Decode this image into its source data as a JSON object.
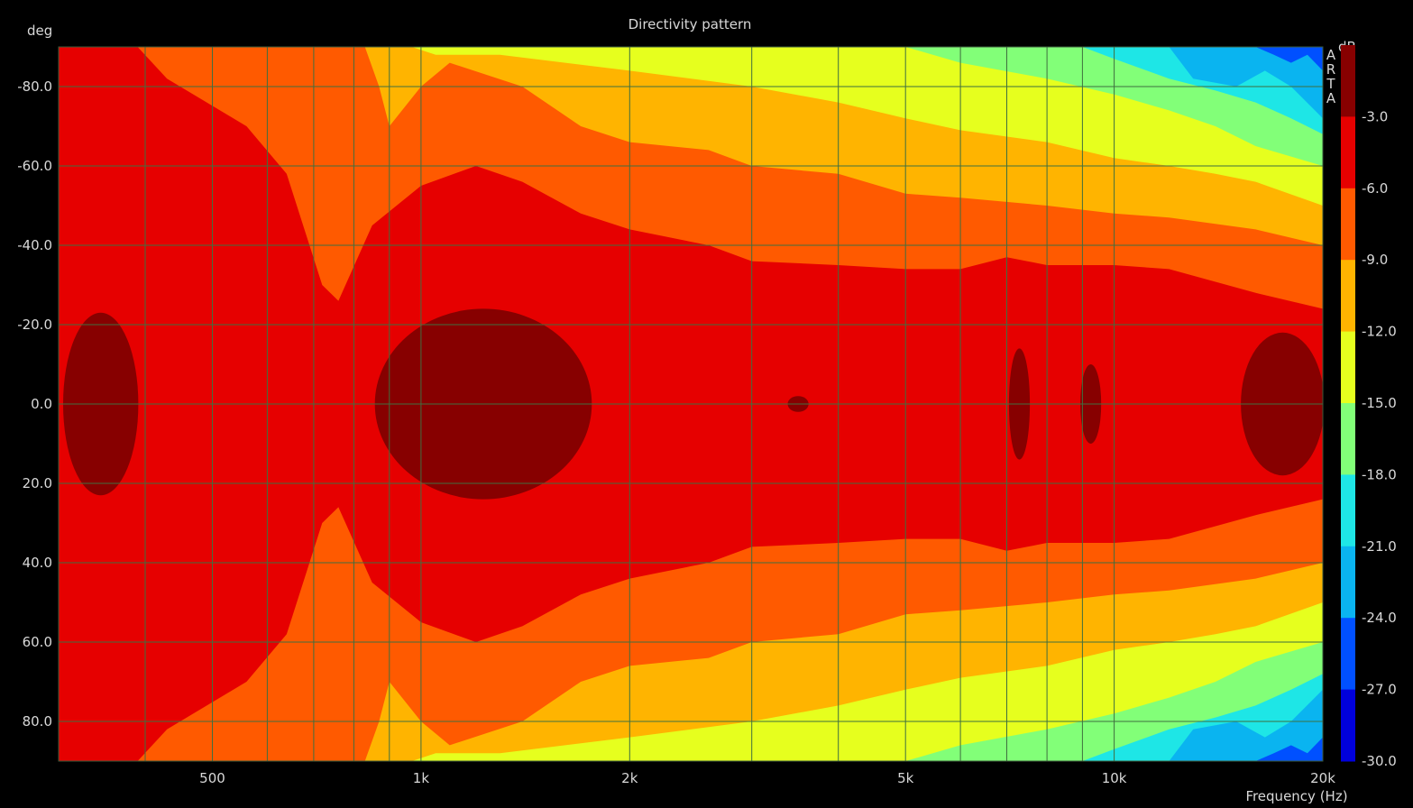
{
  "chart_data": {
    "type": "heatmap",
    "title": "Directivity pattern",
    "xlabel": "Frequency (Hz)",
    "ylabel": "deg",
    "x_scale": "log",
    "xlim": [
      300,
      20000
    ],
    "ylim": [
      -90,
      90
    ],
    "y_reversed": true,
    "x_ticks": [
      {
        "value": 500,
        "label": "500"
      },
      {
        "value": 1000,
        "label": "1k"
      },
      {
        "value": 2000,
        "label": "2k"
      },
      {
        "value": 5000,
        "label": "5k"
      },
      {
        "value": 10000,
        "label": "10k"
      },
      {
        "value": 20000,
        "label": "20k"
      }
    ],
    "x_grid": [
      300,
      400,
      500,
      600,
      700,
      800,
      900,
      1000,
      2000,
      3000,
      4000,
      5000,
      6000,
      7000,
      8000,
      9000,
      10000,
      20000
    ],
    "y_ticks": [
      -80,
      -60,
      -40,
      -20,
      0,
      20,
      40,
      60,
      80
    ],
    "y_tick_labels": [
      "-80.0",
      "-60.0",
      "-40.0",
      "-20.0",
      "0.0",
      "20.0",
      "40.0",
      "60.0",
      "80.0"
    ],
    "grid": true,
    "colorbar": {
      "unit": "dB",
      "labels": [
        "-3.0",
        "-6.0",
        "-9.0",
        "-12.0",
        "-15.0",
        "-18.0",
        "-21.0",
        "-24.0",
        "-27.0",
        "-30.0"
      ],
      "colors": [
        "#870000",
        "#e60000",
        "#ff5a00",
        "#ffb400",
        "#e6ff1e",
        "#82ff78",
        "#1ee6e6",
        "#0ab4f0",
        "#0050ff",
        "#0000dc"
      ]
    },
    "contours": [
      {
        "level": -6,
        "color": "#ff5a00",
        "points": [
          [
            390,
            -90
          ],
          [
            430,
            -82
          ],
          [
            560,
            -70
          ],
          [
            640,
            -58
          ],
          [
            720,
            -30
          ],
          [
            760,
            -26
          ],
          [
            850,
            -45
          ],
          [
            1000,
            -55
          ],
          [
            1200,
            -60
          ],
          [
            1400,
            -56
          ],
          [
            1700,
            -48
          ],
          [
            2000,
            -44
          ],
          [
            2600,
            -40
          ],
          [
            3000,
            -36
          ],
          [
            4000,
            -35
          ],
          [
            5000,
            -34
          ],
          [
            6000,
            -34
          ],
          [
            7000,
            -37
          ],
          [
            8000,
            -35
          ],
          [
            10000,
            -35
          ],
          [
            12000,
            -34
          ],
          [
            16000,
            -28
          ],
          [
            20000,
            -24
          ]
        ]
      },
      {
        "level": -9,
        "color": "#ffb400",
        "points": [
          [
            830,
            -90
          ],
          [
            870,
            -80
          ],
          [
            900,
            -70
          ],
          [
            1000,
            -80
          ],
          [
            1100,
            -86
          ],
          [
            1400,
            -80
          ],
          [
            1700,
            -70
          ],
          [
            2000,
            -66
          ],
          [
            2600,
            -64
          ],
          [
            3000,
            -60
          ],
          [
            4000,
            -58
          ],
          [
            5000,
            -53
          ],
          [
            6000,
            -52
          ],
          [
            8000,
            -50
          ],
          [
            10000,
            -48
          ],
          [
            12000,
            -47
          ],
          [
            16000,
            -44
          ],
          [
            20000,
            -40
          ]
        ]
      },
      {
        "level": -12,
        "color": "#e6ff1e",
        "points": [
          [
            970,
            -90
          ],
          [
            1050,
            -88
          ],
          [
            1300,
            -88
          ],
          [
            2000,
            -84
          ],
          [
            3000,
            -80
          ],
          [
            4000,
            -76
          ],
          [
            5000,
            -72
          ],
          [
            6000,
            -69
          ],
          [
            8000,
            -66
          ],
          [
            10000,
            -62
          ],
          [
            12000,
            -60
          ],
          [
            14000,
            -58
          ],
          [
            16000,
            -56
          ],
          [
            20000,
            -50
          ]
        ]
      },
      {
        "level": -15,
        "color": "#82ff78",
        "points": [
          [
            5000,
            -90
          ],
          [
            6000,
            -86
          ],
          [
            8000,
            -82
          ],
          [
            10000,
            -78
          ],
          [
            12000,
            -74
          ],
          [
            14000,
            -70
          ],
          [
            16000,
            -65
          ],
          [
            20000,
            -60
          ]
        ]
      },
      {
        "level": -18,
        "color": "#1ee6e6",
        "points": [
          [
            9000,
            -90
          ],
          [
            10000,
            -87
          ],
          [
            12000,
            -82
          ],
          [
            14000,
            -79
          ],
          [
            16000,
            -76
          ],
          [
            18000,
            -72
          ],
          [
            20000,
            -68
          ]
        ]
      },
      {
        "level": -21,
        "color": "#0ab4f0",
        "points": [
          [
            12000,
            -90
          ],
          [
            13000,
            -82
          ],
          [
            15000,
            -80
          ],
          [
            16500,
            -84
          ],
          [
            18000,
            -80
          ],
          [
            20000,
            -72
          ]
        ]
      },
      {
        "level": -24,
        "color": "#0050ff",
        "points": [
          [
            16000,
            -90
          ],
          [
            17000,
            -88
          ],
          [
            18000,
            -86
          ],
          [
            19000,
            -88
          ],
          [
            20000,
            -84
          ]
        ]
      }
    ],
    "peak_regions": [
      {
        "level": -3,
        "f_center": 345,
        "f_halfwidth_oct": 0.18,
        "deg_halfwidth": 23
      },
      {
        "level": -3,
        "f_center": 1230,
        "f_halfwidth_oct": 0.52,
        "deg_halfwidth": 24
      },
      {
        "level": -3,
        "f_center": 3500,
        "f_halfwidth_oct": 0.05,
        "deg_halfwidth": 2
      },
      {
        "level": -3,
        "f_center": 7300,
        "f_halfwidth_oct": 0.05,
        "deg_halfwidth": 14
      },
      {
        "level": -3,
        "f_center": 9250,
        "f_halfwidth_oct": 0.05,
        "deg_halfwidth": 10
      },
      {
        "level": -3,
        "f_center": 17500,
        "f_halfwidth_oct": 0.2,
        "deg_halfwidth": 18
      }
    ],
    "watermark": [
      "A",
      "R",
      "T",
      "A"
    ]
  }
}
